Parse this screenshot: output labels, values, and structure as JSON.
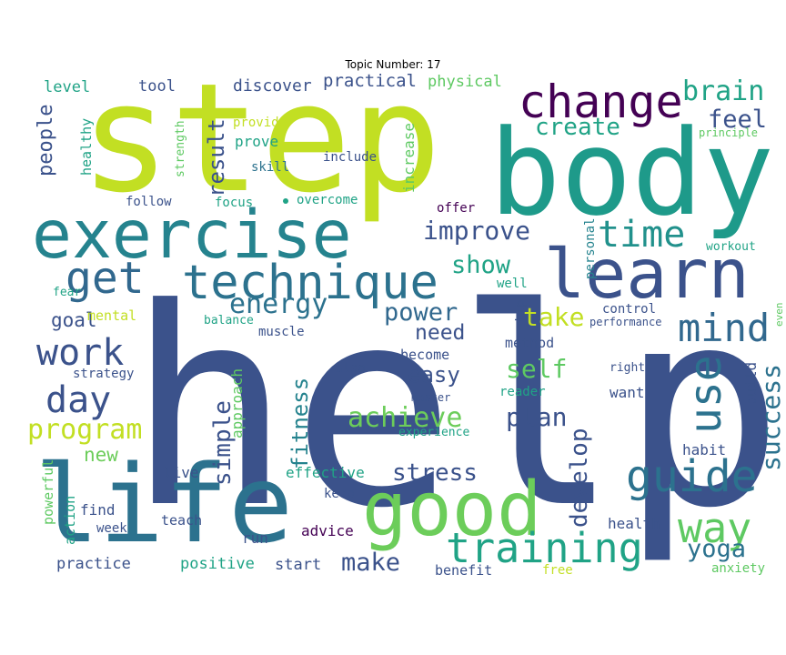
{
  "title": "Topic Number: 17",
  "palette": [
    "#440154",
    "#3b528b",
    "#21918c",
    "#5ec962",
    "#fde725"
  ],
  "words": [
    {
      "text": "help",
      "color": "#3b528b"
    },
    {
      "text": "step",
      "color": "#c2df23"
    },
    {
      "text": "body",
      "color": "#1e9a8a"
    },
    {
      "text": "life",
      "color": "#2c728e"
    },
    {
      "text": "exercise",
      "color": "#25838e"
    },
    {
      "text": "learn",
      "color": "#3b528b"
    },
    {
      "text": "good",
      "color": "#6ccd5a"
    },
    {
      "text": "technique",
      "color": "#2c728e"
    },
    {
      "text": "change",
      "color": "#440154"
    },
    {
      "text": "get",
      "color": "#31688e"
    },
    {
      "text": "training",
      "color": "#20a386"
    },
    {
      "text": "way",
      "color": "#5ec962"
    },
    {
      "text": "guide",
      "color": "#2c728e"
    },
    {
      "text": "mind",
      "color": "#31688e"
    },
    {
      "text": "use",
      "color": "#2c728e"
    },
    {
      "text": "work",
      "color": "#3b528b"
    },
    {
      "text": "day",
      "color": "#3b528b"
    },
    {
      "text": "time",
      "color": "#21918c"
    },
    {
      "text": "program",
      "color": "#c2df23"
    },
    {
      "text": "brain",
      "color": "#20a386"
    },
    {
      "text": "energy",
      "color": "#2c728e"
    },
    {
      "text": "create",
      "color": "#20a386"
    },
    {
      "text": "improve",
      "color": "#3b528b"
    },
    {
      "text": "feel",
      "color": "#3b528b"
    },
    {
      "text": "achieve",
      "color": "#6ccd5a"
    },
    {
      "text": "show",
      "color": "#20a386"
    },
    {
      "text": "power",
      "color": "#31688e"
    },
    {
      "text": "take",
      "color": "#c2df23"
    },
    {
      "text": "self",
      "color": "#5ec962"
    },
    {
      "text": "plan",
      "color": "#3b528b"
    },
    {
      "text": "success",
      "color": "#2c728e"
    },
    {
      "text": "people",
      "color": "#3b528b"
    },
    {
      "text": "simple",
      "color": "#3b528b"
    },
    {
      "text": "stress",
      "color": "#3b528b"
    },
    {
      "text": "make",
      "color": "#3b528b"
    },
    {
      "text": "yoga",
      "color": "#2c728e"
    },
    {
      "text": "develop",
      "color": "#3b528b"
    },
    {
      "text": "result",
      "color": "#3b528b"
    },
    {
      "text": "fitness",
      "color": "#25838e"
    },
    {
      "text": "easy",
      "color": "#3b528b"
    },
    {
      "text": "need",
      "color": "#3b528b"
    },
    {
      "text": "goal",
      "color": "#3b528b"
    },
    {
      "text": "new",
      "color": "#6ccd5a"
    },
    {
      "text": "discover",
      "color": "#3b528b"
    },
    {
      "text": "practical",
      "color": "#3b528b"
    },
    {
      "text": "physical",
      "color": "#5ec962"
    },
    {
      "text": "tool",
      "color": "#3b528b"
    },
    {
      "text": "level",
      "color": "#20a386"
    },
    {
      "text": "healthy",
      "color": "#20a386"
    },
    {
      "text": "strength",
      "color": "#5ec962"
    },
    {
      "text": "provide",
      "color": "#c2df23"
    },
    {
      "text": "prove",
      "color": "#20a386"
    },
    {
      "text": "skill",
      "color": "#2c728e"
    },
    {
      "text": "include",
      "color": "#3b528b"
    },
    {
      "text": "increase",
      "color": "#5ec962"
    },
    {
      "text": "principle",
      "color": "#5ec962"
    },
    {
      "text": "follow",
      "color": "#3b528b"
    },
    {
      "text": "focus",
      "color": "#20a386"
    },
    {
      "text": "overcome",
      "color": "#20a386"
    },
    {
      "text": "offer",
      "color": "#440154"
    },
    {
      "text": "personal",
      "color": "#25838e"
    },
    {
      "text": "workout",
      "color": "#20a386"
    },
    {
      "text": "fear",
      "color": "#20a386"
    },
    {
      "text": "well",
      "color": "#20a386"
    },
    {
      "text": "tip",
      "color": "#3b528b"
    },
    {
      "text": "control",
      "color": "#3b528b"
    },
    {
      "text": "even",
      "color": "#5ec962"
    },
    {
      "text": "mental",
      "color": "#c2df23"
    },
    {
      "text": "balance",
      "color": "#20a386"
    },
    {
      "text": "muscle",
      "color": "#3b528b"
    },
    {
      "text": "performance",
      "color": "#3b528b"
    },
    {
      "text": "method",
      "color": "#3b528b"
    },
    {
      "text": "become",
      "color": "#3b528b"
    },
    {
      "text": "strategy",
      "color": "#3b528b"
    },
    {
      "text": "approach",
      "color": "#5ec962"
    },
    {
      "text": "also",
      "color": "#3b528b"
    },
    {
      "text": "master",
      "color": "#3b528b"
    },
    {
      "text": "reader",
      "color": "#20a386"
    },
    {
      "text": "right",
      "color": "#3b528b"
    },
    {
      "text": "want",
      "color": "#3b528b"
    },
    {
      "text": "build",
      "color": "#3b528b"
    },
    {
      "text": "experience",
      "color": "#20a386"
    },
    {
      "text": "habit",
      "color": "#3b528b"
    },
    {
      "text": "live",
      "color": "#3b528b"
    },
    {
      "text": "effective",
      "color": "#20a386"
    },
    {
      "text": "powerful",
      "color": "#5ec962"
    },
    {
      "text": "action",
      "color": "#20a386"
    },
    {
      "text": "find",
      "color": "#3b528b"
    },
    {
      "text": "week",
      "color": "#3b528b"
    },
    {
      "text": "keep",
      "color": "#3b528b"
    },
    {
      "text": "teach",
      "color": "#3b528b"
    },
    {
      "text": "advice",
      "color": "#440154"
    },
    {
      "text": "run",
      "color": "#3b528b"
    },
    {
      "text": "health",
      "color": "#3b528b"
    },
    {
      "text": "practice",
      "color": "#3b528b"
    },
    {
      "text": "positive",
      "color": "#20a386"
    },
    {
      "text": "start",
      "color": "#3b528b"
    },
    {
      "text": "benefit",
      "color": "#3b528b"
    },
    {
      "text": "free",
      "color": "#c2df23"
    },
    {
      "text": "anxiety",
      "color": "#5ec962"
    }
  ]
}
